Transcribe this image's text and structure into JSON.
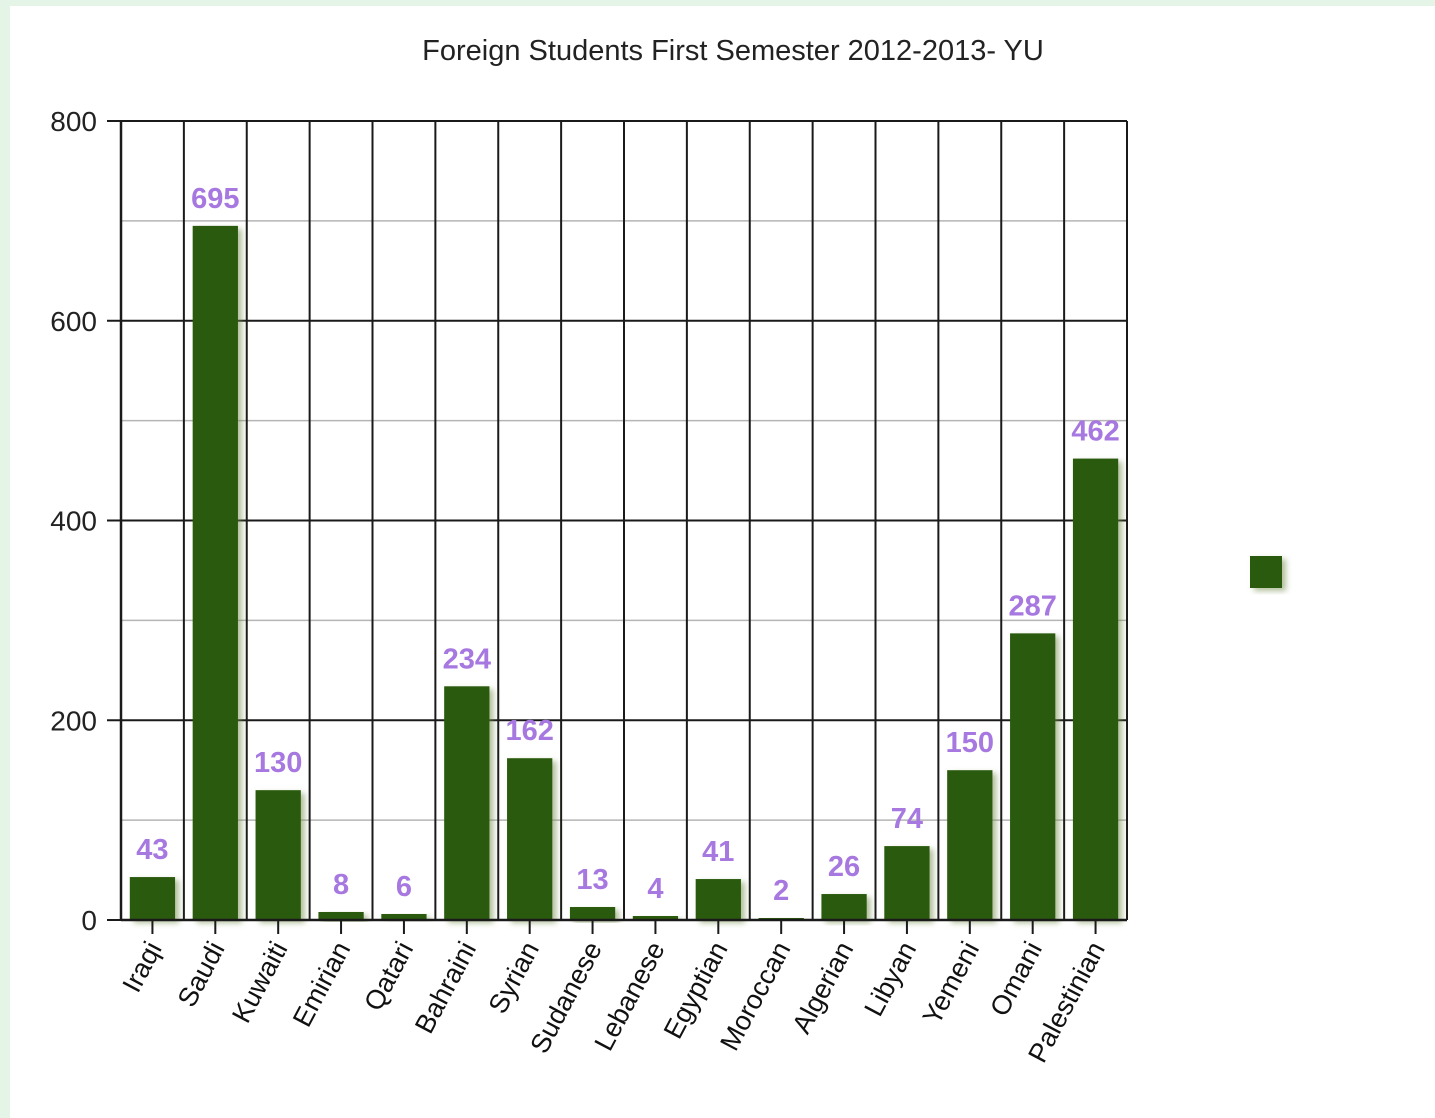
{
  "chart_data": {
    "type": "bar",
    "title": "Foreign Students First Semester 2012-2013- YU",
    "xlabel": "",
    "ylabel": "",
    "categories": [
      "Iraqi",
      "Saudi",
      "Kuwaiti",
      "Emirian",
      "Qatari",
      "Bahraini",
      "Syrian",
      "Sudanese",
      "Lebanese",
      "Egyptian",
      "Moroccan",
      "Algerian",
      "Libyan",
      "Yemeni",
      "Omani",
      "Palestinian"
    ],
    "values": [
      43,
      695,
      130,
      8,
      6,
      234,
      162,
      13,
      4,
      41,
      2,
      26,
      74,
      150,
      287,
      462
    ],
    "ylim": [
      0,
      800
    ],
    "yticks": [
      0,
      200,
      400,
      600,
      800
    ],
    "grid": true,
    "data_labels": true,
    "legend": "right",
    "colors": {
      "bar": "#2a5a09",
      "value_label": "#a678e0",
      "grid_major": "#1a1a1a",
      "grid_minor": "#b5b5b5",
      "frame": "#e4f5e7"
    }
  }
}
